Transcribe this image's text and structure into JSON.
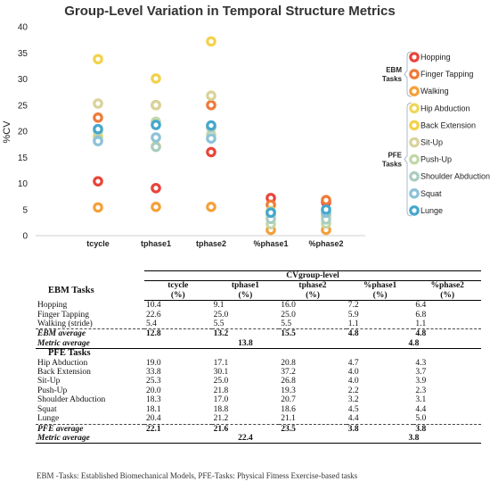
{
  "chart_data": {
    "type": "scatter",
    "title": "Group-Level Variation in Temporal Structure Metrics",
    "ylabel": "%CV",
    "ylim": [
      0,
      40
    ],
    "yticks": [
      0,
      5,
      10,
      15,
      20,
      25,
      30,
      35,
      40
    ],
    "categories": [
      "tcycle",
      "tphase1",
      "tphase2",
      "%phase1",
      "%phase2"
    ],
    "legend_groups": [
      {
        "label": [
          "EBM",
          "Tasks"
        ],
        "series_indices": [
          0,
          1,
          2
        ]
      },
      {
        "label": [
          "PFE",
          "Tasks"
        ],
        "series_indices": [
          3,
          4,
          5,
          6,
          7,
          8,
          9
        ]
      }
    ],
    "series": [
      {
        "name": "Hopping",
        "color": "#e8443a",
        "values": [
          10.4,
          9.1,
          16.0,
          7.2,
          6.4
        ]
      },
      {
        "name": "Finger Tapping",
        "color": "#f07a3a",
        "values": [
          22.6,
          25.0,
          25.0,
          5.9,
          6.8
        ]
      },
      {
        "name": "Walking",
        "color": "#f5a03a",
        "values": [
          5.4,
          5.5,
          5.5,
          1.1,
          1.1
        ]
      },
      {
        "name": "Hip Abduction",
        "color": "#eed75a",
        "values": [
          19.0,
          17.1,
          20.8,
          4.7,
          4.3
        ]
      },
      {
        "name": "Back Extension",
        "color": "#f2d24a",
        "values": [
          33.8,
          30.1,
          37.2,
          4.0,
          3.7
        ]
      },
      {
        "name": "Sit-Up",
        "color": "#d8d39a",
        "values": [
          25.3,
          25.0,
          26.8,
          4.0,
          3.9
        ]
      },
      {
        "name": "Push-Up",
        "color": "#c2d7a8",
        "values": [
          20.0,
          21.8,
          19.3,
          2.2,
          2.3
        ]
      },
      {
        "name": "Shoulder Abduction",
        "color": "#a9cdbf",
        "values": [
          18.3,
          17.0,
          20.7,
          3.2,
          3.1
        ]
      },
      {
        "name": "Squat",
        "color": "#8ec2d8",
        "values": [
          18.1,
          18.8,
          18.6,
          4.5,
          4.4
        ]
      },
      {
        "name": "Lunge",
        "color": "#45a7cc",
        "values": [
          20.4,
          21.2,
          21.1,
          4.4,
          5.0
        ]
      }
    ]
  },
  "table": {
    "group_header": "CVgroup-level",
    "columns": [
      [
        "tcycle",
        "(%)"
      ],
      [
        "tphase1",
        "(%)"
      ],
      [
        "tphase2",
        "(%)"
      ],
      [
        "%phase1",
        "(%)"
      ],
      [
        "%phase2",
        "(%)"
      ]
    ],
    "ebm_title": "EBM  Tasks",
    "ebm_rows": [
      {
        "task": "Hopping",
        "values": [
          "10.4",
          "9.1",
          "16.0",
          "7.2",
          "6.4"
        ]
      },
      {
        "task": "Finger Tapping",
        "values": [
          "22.6",
          "25.0",
          "25.0",
          "5.9",
          "6.8"
        ]
      },
      {
        "task": "Walking (stride)",
        "values": [
          "5.4",
          "5.5",
          "5.5",
          "1.1",
          "1.1"
        ]
      }
    ],
    "ebm_average": {
      "label": "EBM average",
      "values": [
        "12.8",
        "13.2",
        "15.5",
        "4.8",
        "4.8"
      ]
    },
    "ebm_metric_average": {
      "label": "Metric average",
      "time": "13.8",
      "percent": "4.8"
    },
    "pfe_title": "PFE Tasks",
    "pfe_rows": [
      {
        "task": "Hip Abduction",
        "values": [
          "19.0",
          "17.1",
          "20.8",
          "4.7",
          "4.3"
        ]
      },
      {
        "task": "Back Extension",
        "values": [
          "33.8",
          "30.1",
          "37.2",
          "4.0",
          "3.7"
        ]
      },
      {
        "task": "Sit-Up",
        "values": [
          "25.3",
          "25.0",
          "26.8",
          "4.0",
          "3.9"
        ]
      },
      {
        "task": "Push-Up",
        "values": [
          "20.0",
          "21.8",
          "19.3",
          "2.2",
          "2.3"
        ]
      },
      {
        "task": "Shoulder Abduction",
        "values": [
          "18.3",
          "17.0",
          "20.7",
          "3.2",
          "3.1"
        ]
      },
      {
        "task": "Squat",
        "values": [
          "18.1",
          "18.8",
          "18.6",
          "4.5",
          "4.4"
        ]
      },
      {
        "task": "Lunge",
        "values": [
          "20.4",
          "21.2",
          "21.1",
          "4.4",
          "5.0"
        ]
      }
    ],
    "pfe_average": {
      "label": "PFE average",
      "values": [
        "22.1",
        "21.6",
        "23.5",
        "3.8",
        "3.8"
      ]
    },
    "pfe_metric_average": {
      "label": "Metric average",
      "time": "22.4",
      "percent": "3.8"
    }
  },
  "footnote": "EBM -Tasks: Established Biomechanical Models, PFE-Tasks: Physical Fitness Exercise-based tasks"
}
